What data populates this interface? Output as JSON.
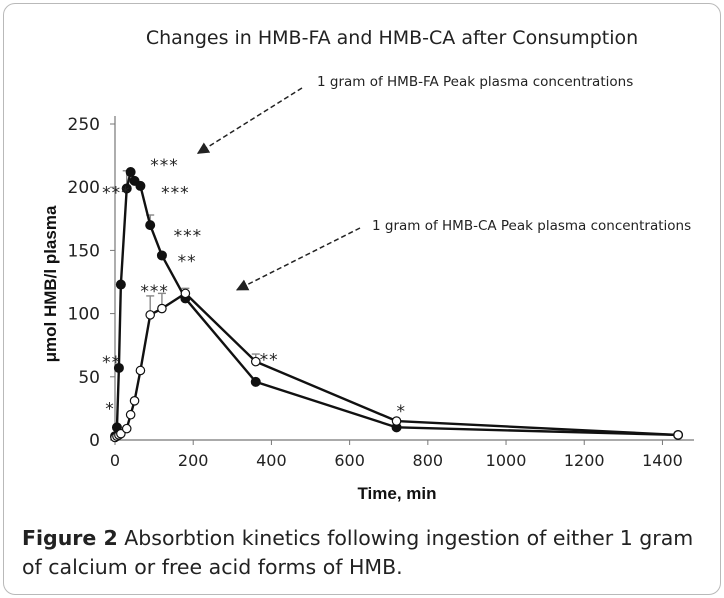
{
  "chart_data": {
    "type": "line",
    "title": "Changes in HMB-FA and HMB-CA after Consumption",
    "xlabel": "Time, min",
    "ylabel": "μmol HMB/l plasma",
    "xlim": [
      0,
      1450
    ],
    "ylim": [
      0,
      250
    ],
    "xticks": [
      0,
      200,
      400,
      600,
      800,
      1000,
      1200,
      1400
    ],
    "yticks": [
      0,
      50,
      100,
      150,
      200,
      250
    ],
    "grid": false,
    "legend": "none",
    "series": [
      {
        "marker": "filled-circle",
        "color": "#111111",
        "x": [
          0,
          5,
          10,
          15,
          30,
          40,
          50,
          65,
          90,
          120,
          180,
          360,
          720,
          1440
        ],
        "y": [
          3,
          10,
          57,
          123,
          199,
          212,
          205,
          201,
          170,
          146,
          112,
          46,
          10,
          4
        ],
        "errors": [
          0,
          0,
          0,
          0,
          14,
          0,
          0,
          0,
          8,
          0,
          0,
          0,
          0,
          0
        ]
      },
      {
        "marker": "open-circle",
        "color": "#111111",
        "x": [
          0,
          5,
          10,
          15,
          30,
          40,
          50,
          65,
          90,
          120,
          180,
          360,
          720,
          1440
        ],
        "y": [
          2,
          3,
          4,
          5,
          9,
          20,
          31,
          55,
          99,
          104,
          116,
          62,
          15,
          4
        ],
        "errors": [
          0,
          0,
          0,
          0,
          0,
          0,
          0,
          0,
          15,
          12,
          4,
          6,
          0,
          0
        ]
      }
    ],
    "significance_marks": [
      {
        "text": "*",
        "x": -25,
        "y": 20
      },
      {
        "text": "**",
        "x": -33,
        "y": 57
      },
      {
        "text": "***",
        "x": -33,
        "y": 191
      },
      {
        "text": "***",
        "x": 90,
        "y": 213
      },
      {
        "text": "***",
        "x": 118,
        "y": 191
      },
      {
        "text": "***",
        "x": 65,
        "y": 113
      },
      {
        "text": "***",
        "x": 150,
        "y": 157
      },
      {
        "text": "**",
        "x": 160,
        "y": 137
      },
      {
        "text": "**",
        "x": 370,
        "y": 59
      },
      {
        "text": "*",
        "x": 720,
        "y": 18
      }
    ],
    "annotations": [
      {
        "text": "1 gram of HMB-FA Peak plasma concentrations",
        "points_to": {
          "x": 120,
          "y": 230
        }
      },
      {
        "text": "1 gram of HMB-CA Peak plasma concentrations",
        "points_to": {
          "x": 220,
          "y": 122
        }
      }
    ]
  },
  "caption": {
    "label": "Figure 2",
    "text": "Absorbtion kinetics following ingestion of either 1 gram of calcium or free acid forms of HMB."
  }
}
